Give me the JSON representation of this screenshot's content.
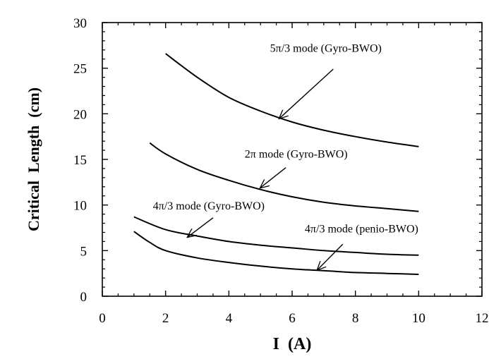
{
  "chart_data": {
    "type": "line",
    "title": "",
    "xlabel": "I  (A)",
    "ylabel": "Critical  Length  (cm)",
    "xlim": [
      0,
      12
    ],
    "ylim": [
      0,
      30
    ],
    "x_ticks": [
      0,
      2,
      4,
      6,
      8,
      10,
      12
    ],
    "y_ticks": [
      0,
      5,
      10,
      15,
      20,
      25,
      30
    ],
    "x_tick_labels": [
      "0",
      "2",
      "4",
      "6",
      "8",
      "10",
      "12"
    ],
    "y_tick_labels": [
      "0",
      "5",
      "10",
      "15",
      "20",
      "25",
      "30"
    ],
    "grid": false,
    "legend": "none",
    "series": [
      {
        "name": "5π/3 mode (Gyro-BWO)",
        "x": [
          2.0,
          3.0,
          4.0,
          5.0,
          6.0,
          7.0,
          8.0,
          9.0,
          10.0
        ],
        "y": [
          26.6,
          24.0,
          21.8,
          20.3,
          19.1,
          18.2,
          17.5,
          16.9,
          16.4
        ]
      },
      {
        "name": "2π mode (Gyro-BWO)",
        "x": [
          1.5,
          2.0,
          3.0,
          4.0,
          5.0,
          6.0,
          7.0,
          8.0,
          9.0,
          10.0
        ],
        "y": [
          16.8,
          15.6,
          13.9,
          12.7,
          11.7,
          10.9,
          10.3,
          9.9,
          9.6,
          9.3
        ]
      },
      {
        "name": "4π/3 mode (Gyro-BWO)",
        "x": [
          1.0,
          2.0,
          3.0,
          4.0,
          5.0,
          6.0,
          7.0,
          8.0,
          9.0,
          10.0
        ],
        "y": [
          8.7,
          7.3,
          6.6,
          6.0,
          5.6,
          5.3,
          5.0,
          4.8,
          4.6,
          4.5
        ]
      },
      {
        "name": "4π/3 mode (penio-BWO)",
        "x": [
          1.0,
          1.5,
          2.0,
          3.0,
          4.0,
          5.0,
          6.0,
          7.0,
          8.0,
          9.0,
          10.0
        ],
        "y": [
          7.1,
          5.9,
          5.0,
          4.2,
          3.7,
          3.3,
          3.0,
          2.8,
          2.6,
          2.5,
          2.4
        ]
      }
    ],
    "annotations": [
      {
        "text": "5π/3 mode (Gyro-BWO)",
        "text_at": [
          5.3,
          26.8
        ],
        "arrow_from": [
          7.3,
          24.9
        ],
        "arrow_to": [
          5.6,
          19.5
        ]
      },
      {
        "text": "2π mode (Gyro-BWO)",
        "text_at": [
          4.5,
          15.2
        ],
        "arrow_from": [
          5.8,
          14.1
        ],
        "arrow_to": [
          5.0,
          11.9
        ]
      },
      {
        "text": "4π/3 mode (Gyro-BWO)",
        "text_at": [
          1.6,
          9.5
        ],
        "arrow_from": [
          3.5,
          8.6
        ],
        "arrow_to": [
          2.7,
          6.5
        ]
      },
      {
        "text": "4π/3 mode (penio-BWO)",
        "text_at": [
          6.4,
          7.0
        ],
        "arrow_from": [
          7.6,
          5.7
        ],
        "arrow_to": [
          6.8,
          2.9
        ]
      }
    ]
  }
}
